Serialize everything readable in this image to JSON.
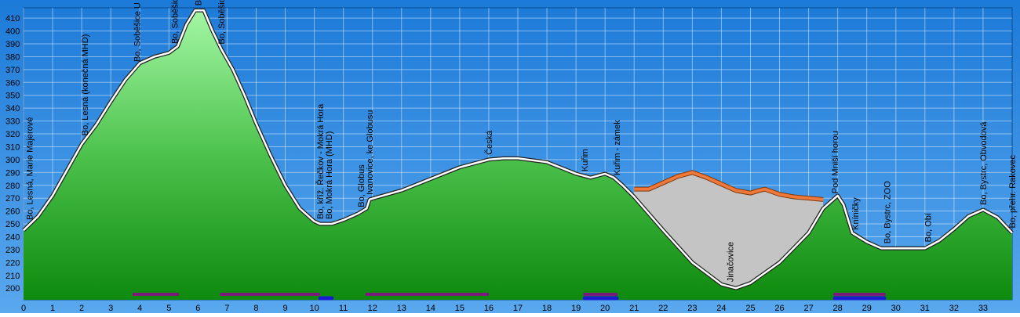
{
  "chart_data": {
    "type": "area",
    "x": [
      0,
      0.5,
      1,
      1.5,
      2,
      2.5,
      3,
      3.5,
      4,
      4.5,
      5,
      5.3,
      5.6,
      5.9,
      6.2,
      6.5,
      6.8,
      7.2,
      7.6,
      8,
      8.5,
      9,
      9.5,
      10,
      10.2,
      10.6,
      11,
      11.5,
      11.8,
      11.9,
      12.2,
      13,
      14,
      15,
      16,
      16.5,
      17,
      18,
      19,
      19.5,
      20,
      20.3,
      20.6,
      21,
      22,
      23,
      24,
      24.5,
      25,
      26,
      27,
      27.5,
      28,
      28.2,
      28.5,
      29,
      29.5,
      30,
      31,
      31.5,
      32,
      32.5,
      33,
      33.5,
      34
    ],
    "values": [
      245,
      256,
      272,
      292,
      312,
      327,
      345,
      362,
      375,
      380,
      383,
      388,
      405,
      416,
      416,
      400,
      386,
      370,
      350,
      328,
      303,
      280,
      262,
      252,
      250,
      250,
      253,
      258,
      262,
      269,
      271,
      276,
      285,
      294,
      300,
      301,
      301,
      298,
      289,
      286,
      289,
      286,
      280,
      271,
      245,
      220,
      203,
      200,
      204,
      220,
      243,
      262,
      272,
      265,
      243,
      236,
      231,
      231,
      231,
      237,
      246,
      256,
      261,
      255,
      243
    ],
    "color": "#2db52d",
    "surface": {
      "x": [
        21,
        21.5,
        22,
        22.5,
        23,
        23.5,
        24,
        24.5,
        25,
        25.3,
        25.5,
        26,
        26.5,
        27,
        27.5
      ],
      "values": [
        277,
        277,
        282,
        287,
        290,
        286,
        281,
        276,
        274,
        276,
        277,
        273,
        271,
        270,
        269
      ],
      "color": "#f07838"
    },
    "stops": [
      {
        "name": "Bo, Lesná, Marie Majerové",
        "km": 0.2
      },
      {
        "name": "Bo, Lesná (konečná MHD)",
        "km": 2.1
      },
      {
        "name": "Bo, Soběšice U Vodárny",
        "km": 3.9
      },
      {
        "name": "Bo, Soběšice (MHD)",
        "km": 5.2
      },
      {
        "name": "Bo, Nad Soběšicemi (MHD)",
        "km": 6
      },
      {
        "name": "Bo, Soběšice (MHD)",
        "km": 6.8
      },
      {
        "name": "Bo, kříž. Řečkov - Mokrá Hora",
        "km": 10.2
      },
      {
        "name": "Bo, Mokrá Hora (MHD)",
        "km": 10.5
      },
      {
        "name": "Bo, Globus",
        "km": 11.6
      },
      {
        "name": "Ivanovice, ke Globusu",
        "km": 11.9
      },
      {
        "name": "Česká",
        "km": 16
      },
      {
        "name": "Kuřim",
        "km": 19.3
      },
      {
        "name": "Kuřim - zámek",
        "km": 20.4
      },
      {
        "name": "Jinačovice",
        "km": 24.3
      },
      {
        "name": "Pod Mniší horou",
        "km": 27.9
      },
      {
        "name": "Kníničky",
        "km": 28.6
      },
      {
        "name": "Bo, Bystrc, ZOO",
        "km": 29.7
      },
      {
        "name": "Bo, Obí",
        "km": 31.1
      },
      {
        "name": "Bo, Bystrc, Obvodová",
        "km": 33
      },
      {
        "name": "Bo, přehr. Rakovec",
        "km": 34
      }
    ],
    "markers": [
      {
        "color": "#7a1a7a",
        "from": 3.8,
        "to": 5.3
      },
      {
        "color": "#7a1a7a",
        "from": 6.8,
        "to": 10.2
      },
      {
        "color": "#7a1a7a",
        "from": 11.8,
        "to": 16
      },
      {
        "color": "#7a1a7a",
        "from": 19.3,
        "to": 20.4
      },
      {
        "color": "#7a1a7a",
        "from": 27.9,
        "to": 29.6
      },
      {
        "color": "#1a1ad0",
        "from": 10.2,
        "to": 10.6
      },
      {
        "color": "#1a1ad0",
        "from": 19.3,
        "to": 20.4
      },
      {
        "color": "#1a1ad0",
        "from": 27.9,
        "to": 29.6
      }
    ],
    "xlim": [
      0,
      34
    ],
    "ylim": [
      191,
      418
    ],
    "xticks": [
      0,
      1,
      2,
      3,
      4,
      5,
      6,
      7,
      8,
      9,
      10,
      11,
      12,
      13,
      14,
      15,
      16,
      17,
      18,
      19,
      20,
      21,
      22,
      23,
      24,
      25,
      26,
      27,
      28,
      29,
      30,
      31,
      32,
      33
    ],
    "yticks": [
      200,
      210,
      220,
      230,
      240,
      250,
      260,
      270,
      280,
      290,
      300,
      310,
      320,
      330,
      340,
      350,
      360,
      370,
      380,
      390,
      400,
      410
    ],
    "grid": true
  }
}
